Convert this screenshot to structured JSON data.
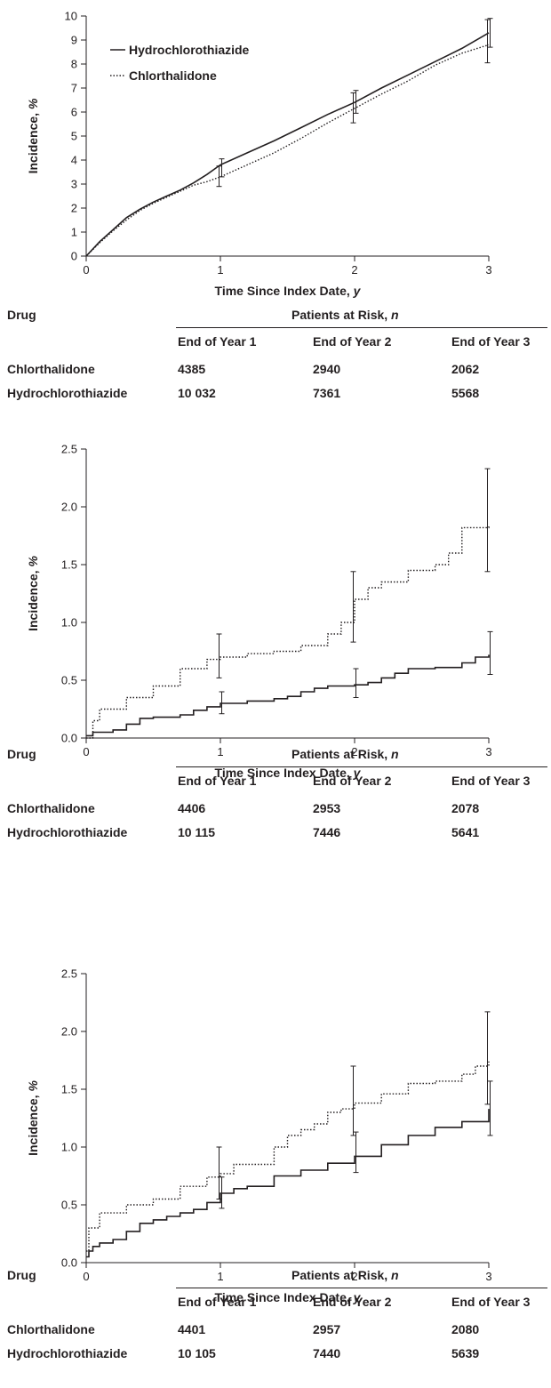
{
  "chart_data": [
    {
      "type": "line",
      "xlabel": "Time Since Index Date, y",
      "ylabel": "Incidence, %",
      "xlim": [
        0,
        3
      ],
      "ylim": [
        0,
        10
      ],
      "xticks": [
        0,
        1,
        2,
        3
      ],
      "yticks": [
        0,
        1,
        2,
        3,
        4,
        5,
        6,
        7,
        8,
        9,
        10
      ],
      "legend": "top-left",
      "series": [
        {
          "name": "Hydrochlorothiazide",
          "style": "solid",
          "step": false,
          "x": [
            0,
            0.1,
            0.2,
            0.3,
            0.4,
            0.5,
            0.6,
            0.7,
            0.8,
            0.9,
            1.0,
            1.2,
            1.4,
            1.6,
            1.8,
            2.0,
            2.2,
            2.4,
            2.6,
            2.8,
            3.0
          ],
          "y": [
            0,
            0.6,
            1.1,
            1.6,
            1.95,
            2.25,
            2.5,
            2.75,
            3.05,
            3.4,
            3.8,
            4.3,
            4.8,
            5.35,
            5.9,
            6.4,
            7.0,
            7.55,
            8.1,
            8.65,
            9.3
          ],
          "error_bars": [
            {
              "x": 1,
              "low": 3.3,
              "high": 4.05
            },
            {
              "x": 2,
              "low": 5.95,
              "high": 6.9
            },
            {
              "x": 3,
              "low": 8.7,
              "high": 9.9
            }
          ]
        },
        {
          "name": "Chlorthalidone",
          "style": "dotted",
          "step": false,
          "x": [
            0,
            0.1,
            0.2,
            0.3,
            0.4,
            0.5,
            0.6,
            0.7,
            0.8,
            0.9,
            1.0,
            1.2,
            1.4,
            1.6,
            1.8,
            2.0,
            2.2,
            2.4,
            2.6,
            2.8,
            3.0
          ],
          "y": [
            0,
            0.55,
            1.05,
            1.5,
            1.9,
            2.2,
            2.45,
            2.7,
            2.95,
            3.1,
            3.3,
            3.8,
            4.3,
            4.9,
            5.55,
            6.15,
            6.75,
            7.3,
            7.95,
            8.45,
            8.8
          ],
          "error_bars": [
            {
              "x": 1,
              "low": 2.9,
              "high": 3.75
            },
            {
              "x": 2,
              "low": 5.55,
              "high": 6.8
            },
            {
              "x": 3,
              "low": 8.05,
              "high": 9.85
            }
          ]
        }
      ],
      "risk_table": {
        "header_drug": "Drug",
        "header_group": "Patients at Risk, n",
        "columns": [
          "End of Year 1",
          "End of Year 2",
          "End of Year 3"
        ],
        "rows": [
          {
            "drug": "Chlorthalidone",
            "values": [
              "4385",
              "2940",
              "2062"
            ]
          },
          {
            "drug": "Hydrochlorothiazide",
            "values": [
              "10 032",
              "7361",
              "5568"
            ]
          }
        ]
      }
    },
    {
      "type": "line",
      "xlabel": "Time Since Index Date, y",
      "ylabel": "Incidence, %",
      "xlim": [
        0,
        3
      ],
      "ylim": [
        0,
        2.5
      ],
      "xticks": [
        0,
        1,
        2,
        3
      ],
      "yticks": [
        "0.0",
        "0.5",
        "1.0",
        "1.5",
        "2.0",
        "2.5"
      ],
      "series": [
        {
          "name": "Hydrochlorothiazide",
          "style": "solid",
          "step": true,
          "x": [
            0,
            0.05,
            0.2,
            0.3,
            0.4,
            0.5,
            0.7,
            0.8,
            0.9,
            1.0,
            1.2,
            1.4,
            1.5,
            1.6,
            1.7,
            1.8,
            2.0,
            2.1,
            2.2,
            2.3,
            2.4,
            2.6,
            2.8,
            2.9,
            3.0
          ],
          "y": [
            0.02,
            0.05,
            0.07,
            0.12,
            0.17,
            0.18,
            0.2,
            0.24,
            0.27,
            0.3,
            0.32,
            0.34,
            0.36,
            0.4,
            0.43,
            0.45,
            0.46,
            0.48,
            0.52,
            0.56,
            0.6,
            0.61,
            0.65,
            0.7,
            0.72
          ],
          "error_bars": [
            {
              "x": 1,
              "low": 0.21,
              "high": 0.4
            },
            {
              "x": 2,
              "low": 0.35,
              "high": 0.6
            },
            {
              "x": 3,
              "low": 0.55,
              "high": 0.92
            }
          ]
        },
        {
          "name": "Chlorthalidone",
          "style": "dotted",
          "step": true,
          "x": [
            0,
            0.05,
            0.1,
            0.3,
            0.5,
            0.7,
            0.9,
            1.0,
            1.2,
            1.4,
            1.6,
            1.8,
            1.9,
            2.0,
            2.1,
            2.2,
            2.4,
            2.6,
            2.7,
            2.8,
            3.0
          ],
          "y": [
            0.0,
            0.15,
            0.25,
            0.35,
            0.45,
            0.6,
            0.68,
            0.7,
            0.73,
            0.75,
            0.8,
            0.9,
            1.0,
            1.2,
            1.3,
            1.35,
            1.45,
            1.5,
            1.6,
            1.82,
            1.84
          ],
          "error_bars": [
            {
              "x": 1,
              "low": 0.52,
              "high": 0.9
            },
            {
              "x": 2,
              "low": 0.83,
              "high": 1.44
            },
            {
              "x": 3,
              "low": 1.44,
              "high": 2.33
            }
          ]
        }
      ],
      "risk_table": {
        "header_drug": "Drug",
        "header_group": "Patients at Risk, n",
        "columns": [
          "End of Year 1",
          "End of Year 2",
          "End of Year 3"
        ],
        "rows": [
          {
            "drug": "Chlorthalidone",
            "values": [
              "4406",
              "2953",
              "2078"
            ]
          },
          {
            "drug": "Hydrochlorothiazide",
            "values": [
              "10 115",
              "7446",
              "5641"
            ]
          }
        ]
      }
    },
    {
      "type": "line",
      "xlabel": "Time Since Index Date, y",
      "ylabel": "Incidence, %",
      "xlim": [
        0,
        3
      ],
      "ylim": [
        0,
        2.5
      ],
      "xticks": [
        0,
        1,
        2,
        3
      ],
      "yticks": [
        "0.0",
        "0.5",
        "1.0",
        "1.5",
        "2.0",
        "2.5"
      ],
      "series": [
        {
          "name": "Hydrochlorothiazide",
          "style": "solid",
          "step": true,
          "x": [
            0,
            0.02,
            0.05,
            0.1,
            0.2,
            0.3,
            0.4,
            0.5,
            0.6,
            0.7,
            0.8,
            0.9,
            1.0,
            1.1,
            1.2,
            1.4,
            1.6,
            1.8,
            2.0,
            2.2,
            2.4,
            2.6,
            2.8,
            3.0
          ],
          "y": [
            0.05,
            0.1,
            0.14,
            0.17,
            0.2,
            0.27,
            0.34,
            0.37,
            0.4,
            0.43,
            0.46,
            0.52,
            0.6,
            0.64,
            0.66,
            0.75,
            0.8,
            0.86,
            0.92,
            1.02,
            1.1,
            1.17,
            1.22,
            1.33
          ],
          "error_bars": [
            {
              "x": 1,
              "low": 0.47,
              "high": 0.74
            },
            {
              "x": 2,
              "low": 0.78,
              "high": 1.13
            },
            {
              "x": 3,
              "low": 1.1,
              "high": 1.57
            }
          ]
        },
        {
          "name": "Chlorthalidone",
          "style": "dotted",
          "step": true,
          "x": [
            0,
            0.02,
            0.1,
            0.3,
            0.5,
            0.7,
            0.9,
            1.0,
            1.1,
            1.2,
            1.3,
            1.4,
            1.5,
            1.6,
            1.7,
            1.8,
            1.9,
            2.0,
            2.2,
            2.4,
            2.6,
            2.8,
            2.9,
            3.0
          ],
          "y": [
            0.1,
            0.3,
            0.43,
            0.5,
            0.55,
            0.66,
            0.74,
            0.77,
            0.85,
            0.85,
            0.85,
            1.0,
            1.1,
            1.15,
            1.2,
            1.3,
            1.33,
            1.38,
            1.46,
            1.55,
            1.57,
            1.63,
            1.7,
            1.74
          ],
          "error_bars": [
            {
              "x": 1,
              "low": 0.55,
              "high": 1.0
            },
            {
              "x": 2,
              "low": 1.1,
              "high": 1.7
            },
            {
              "x": 3,
              "low": 1.37,
              "high": 2.17
            }
          ]
        }
      ],
      "risk_table": {
        "header_drug": "Drug",
        "header_group": "Patients at Risk, n",
        "columns": [
          "End of Year 1",
          "End of Year 2",
          "End of Year 3"
        ],
        "rows": [
          {
            "drug": "Chlorthalidone",
            "values": [
              "4401",
              "2957",
              "2080"
            ]
          },
          {
            "drug": "Hydrochlorothiazide",
            "values": [
              "10 105",
              "7440",
              "5639"
            ]
          }
        ]
      }
    }
  ]
}
